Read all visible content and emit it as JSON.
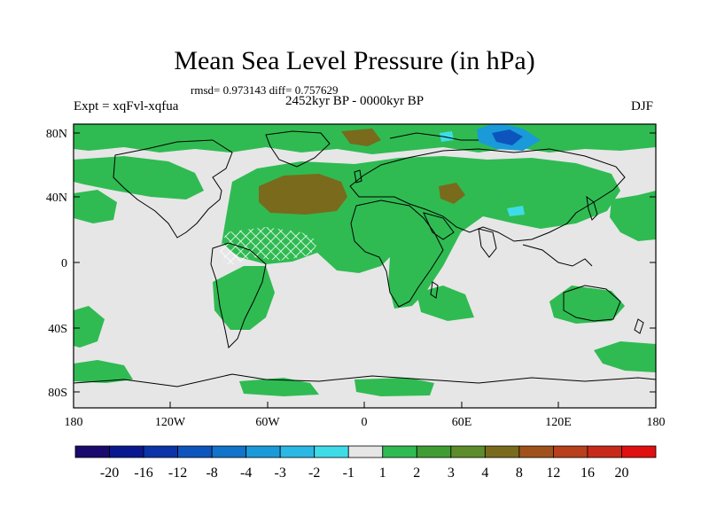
{
  "header": {
    "title": "Mean Sea Level Pressure (in hPa)",
    "stats": "rmsd= 0.973143 diff= 0.757629",
    "period": "2452kyr BP - 0000kyr BP",
    "experiment": "Expt = xqFvl-xqfua",
    "season": "DJF"
  },
  "map": {
    "type": "filled-contour world map",
    "projection": "cylindrical equidistant",
    "lon_range": [
      -180,
      180
    ],
    "lat_range": [
      -90,
      90
    ],
    "lat_tick_labels": [
      "80N",
      "40N",
      "0",
      "40S",
      "80S"
    ],
    "lon_tick_labels": [
      "180",
      "120W",
      "60W",
      "0",
      "60E",
      "120E",
      "180"
    ],
    "background_color": "#e6e6e6",
    "coastline_color": "#000000",
    "hatching": "white cross-hatched area over tropical Atlantic"
  },
  "colorbar": {
    "levels": [
      "-20",
      "-16",
      "-12",
      "-8",
      "-4",
      "-3",
      "-2",
      "-1",
      "1",
      "2",
      "3",
      "4",
      "8",
      "12",
      "16",
      "20"
    ],
    "colors": [
      "#1a0a6e",
      "#0a1890",
      "#0c34a8",
      "#0d55bd",
      "#1173ca",
      "#1a9ad8",
      "#2bb8e4",
      "#3fdce8",
      "#e6e6e6",
      "#2fbb52",
      "#3f9d34",
      "#5c8c2c",
      "#7a6a1c",
      "#a0521c",
      "#b8401c",
      "#c82a1a",
      "#e01010"
    ]
  }
}
